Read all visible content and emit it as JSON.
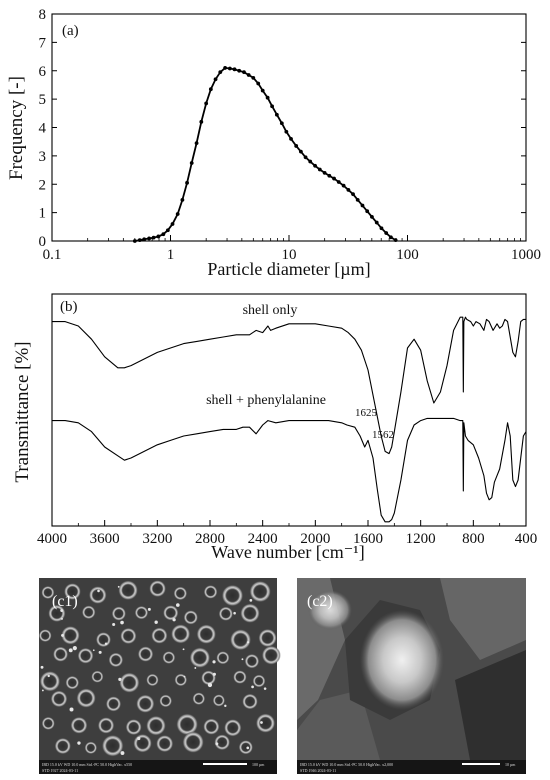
{
  "chart_data": [
    {
      "panel_label": "(a)",
      "type": "line",
      "xlabel": "Particle diameter [µm]",
      "ylabel": "Frequency [-]",
      "xscale": "log",
      "xlim": [
        0.1,
        1000
      ],
      "ylim": [
        0,
        8
      ],
      "xticks": [
        0.1,
        1,
        10,
        100,
        1000
      ],
      "xtick_labels": [
        "0.1",
        "1",
        "10",
        "100",
        "1000"
      ],
      "yticks": [
        0,
        1,
        2,
        3,
        4,
        5,
        6,
        7,
        8
      ],
      "ytick_labels": [
        "0",
        "1",
        "2",
        "3",
        "4",
        "5",
        "6",
        "7",
        "8"
      ],
      "grid": false,
      "series": [
        {
          "markers": true,
          "x": [
            0.5,
            0.55,
            0.6,
            0.66,
            0.72,
            0.79,
            0.87,
            0.95,
            1.04,
            1.15,
            1.26,
            1.38,
            1.51,
            1.66,
            1.82,
            2.0,
            2.19,
            2.4,
            2.63,
            2.89,
            3.17,
            3.47,
            3.8,
            4.17,
            4.57,
            5.0,
            5.5,
            6.0,
            6.6,
            7.2,
            7.9,
            8.7,
            9.5,
            10.4,
            11.5,
            12.6,
            13.8,
            15.1,
            16.6,
            18.2,
            20.0,
            21.9,
            24.0,
            26.3,
            28.9,
            31.7,
            34.7,
            38.0,
            41.7,
            45.7,
            50.1,
            55.0,
            60.3,
            66.1,
            72.4,
            79.4
          ],
          "y": [
            0.0,
            0.03,
            0.06,
            0.09,
            0.12,
            0.16,
            0.24,
            0.38,
            0.6,
            0.95,
            1.45,
            2.05,
            2.75,
            3.45,
            4.2,
            4.85,
            5.35,
            5.7,
            5.95,
            6.1,
            6.08,
            6.05,
            6.0,
            5.95,
            5.85,
            5.75,
            5.55,
            5.3,
            5.05,
            4.75,
            4.45,
            4.15,
            3.85,
            3.6,
            3.35,
            3.15,
            2.95,
            2.8,
            2.65,
            2.52,
            2.4,
            2.3,
            2.2,
            2.08,
            1.95,
            1.8,
            1.65,
            1.45,
            1.25,
            1.05,
            0.85,
            0.65,
            0.45,
            0.28,
            0.13,
            0.03
          ]
        }
      ]
    },
    {
      "panel_label": "(b)",
      "type": "line",
      "xlabel": "Wave number [cm⁻¹]",
      "ylabel": "Transmittance [%]",
      "xlim": [
        4000,
        400
      ],
      "x_reversed": true,
      "xticks": [
        4000,
        3600,
        3200,
        2800,
        2400,
        2000,
        1600,
        1200,
        800,
        400
      ],
      "xtick_labels": [
        "4000",
        "3600",
        "3200",
        "2800",
        "2400",
        "2000",
        "1600",
        "1200",
        "800",
        "400"
      ],
      "yticks_shown": false,
      "ylim": [
        0,
        100
      ],
      "grid": false,
      "series": [
        {
          "label": "shell only",
          "x": [
            4000,
            3900,
            3800,
            3700,
            3600,
            3500,
            3450,
            3400,
            3300,
            3200,
            3100,
            3000,
            2900,
            2800,
            2700,
            2600,
            2500,
            2450,
            2400,
            2360,
            2340,
            2300,
            2200,
            2100,
            2000,
            1900,
            1800,
            1750,
            1700,
            1650,
            1600,
            1550,
            1500,
            1470,
            1440,
            1420,
            1400,
            1350,
            1300,
            1250,
            1200,
            1150,
            1100,
            1050,
            1000,
            950,
            900,
            880,
            876,
            872,
            860,
            850,
            820,
            800,
            780,
            750,
            720,
            700,
            680,
            650,
            620,
            600,
            580,
            560,
            540,
            520,
            500,
            480,
            460,
            440,
            420,
            400
          ],
          "y": [
            92,
            92,
            90,
            84,
            76,
            71,
            71,
            72,
            75,
            78,
            80,
            82,
            83,
            84,
            85,
            86,
            86,
            88,
            87,
            90,
            88,
            89,
            91,
            91,
            91,
            90,
            89,
            87,
            84,
            79,
            70,
            55,
            40,
            33,
            32,
            35,
            42,
            60,
            80,
            84,
            79,
            65,
            55,
            60,
            72,
            88,
            94,
            94,
            60,
            92,
            94,
            93,
            92,
            90,
            92,
            91,
            88,
            93,
            92,
            88,
            91,
            89,
            90,
            93,
            92,
            85,
            78,
            76,
            83,
            92,
            93,
            93
          ]
        },
        {
          "label": "shell + phenylalanine",
          "x": [
            4000,
            3900,
            3800,
            3700,
            3600,
            3500,
            3450,
            3400,
            3300,
            3200,
            3100,
            3000,
            2900,
            2800,
            2700,
            2600,
            2550,
            2500,
            2450,
            2400,
            2360,
            2300,
            2200,
            2100,
            2000,
            1900,
            1800,
            1760,
            1700,
            1660,
            1625,
            1600,
            1562,
            1530,
            1500,
            1470,
            1440,
            1420,
            1400,
            1350,
            1300,
            1250,
            1200,
            1150,
            1100,
            1050,
            1000,
            950,
            900,
            880,
            876,
            872,
            860,
            840,
            800,
            760,
            720,
            700,
            680,
            660,
            640,
            620,
            600,
            560,
            540,
            520,
            500,
            480,
            460,
            440,
            420,
            400
          ],
          "y": [
            47,
            47,
            46,
            42,
            35,
            31,
            29,
            30,
            33,
            36,
            38,
            40,
            41,
            42,
            43,
            43,
            44,
            44,
            41,
            45,
            47,
            46,
            47,
            47,
            47,
            47,
            46,
            45,
            44,
            40,
            35,
            38,
            30,
            16,
            4,
            1,
            1,
            2,
            5,
            20,
            38,
            45,
            47,
            48,
            48,
            48,
            48,
            48,
            47,
            47,
            15,
            46,
            40,
            38,
            36,
            30,
            22,
            14,
            11,
            12,
            19,
            22,
            25,
            38,
            46,
            40,
            20,
            17,
            20,
            30,
            40,
            42
          ]
        }
      ],
      "annotations": [
        {
          "text": "shell only"
        },
        {
          "text": "shell + phenylalanine"
        },
        {
          "text": "1625"
        },
        {
          "text": "1562"
        }
      ]
    }
  ],
  "micrographs": [
    {
      "label": "(c1)",
      "footer_line1": "IBD  15.0 kV  WD 10.0 mm  Std.-PC 50.0  HighVac.  x550",
      "footer_line2": "STD   1927   2024-03-11",
      "scale_text": "100 µm"
    },
    {
      "label": "(c2)",
      "footer_line1": "IBD  15.0 kV  WD 10.0 mm  Std.-PC 50.0  HighVac.  x2,000",
      "footer_line2": "STD   1946   2024-03-11",
      "scale_text": "10 µm"
    }
  ]
}
